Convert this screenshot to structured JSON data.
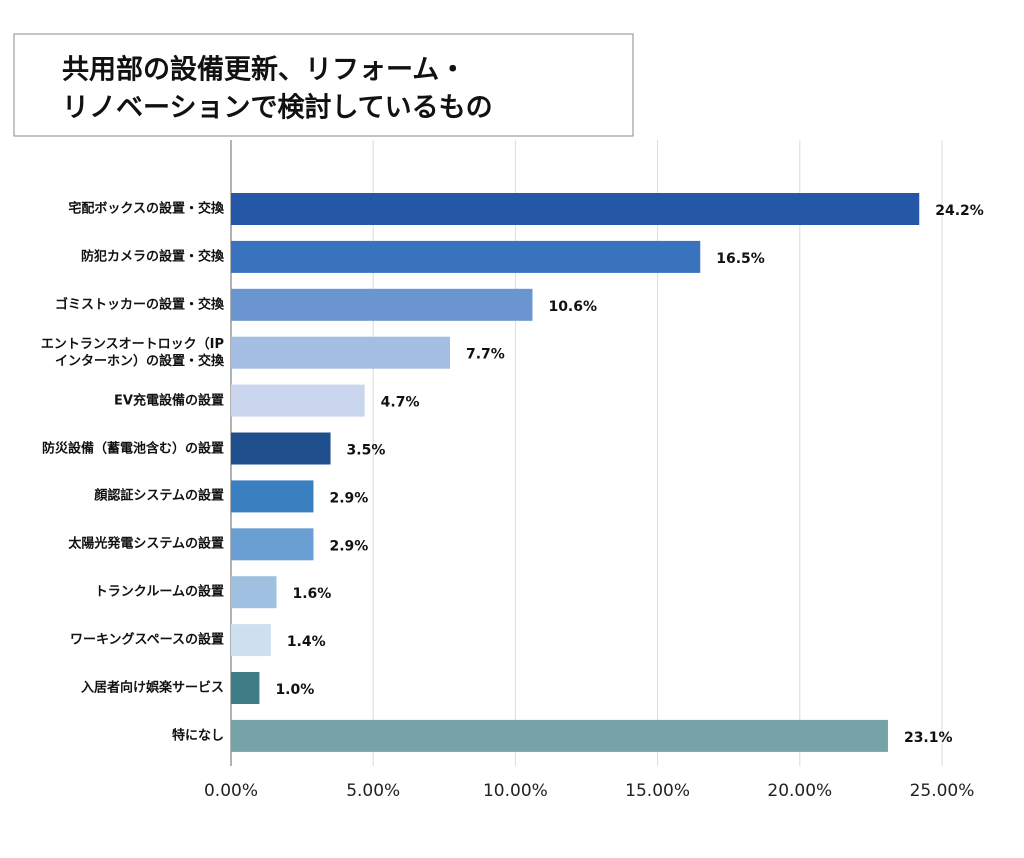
{
  "chart_data": {
    "type": "hbar",
    "title": [
      "共用部の設備更新、リフォーム・",
      "リノベーションで検討しているもの"
    ],
    "categories": [
      "宅配ボックスの設置・交換",
      "防犯カメラの設置・交換",
      "ゴミストッカーの設置・交換",
      "エントランスオートロック（IP\nインターホン）の設置・交換",
      "EV充電設備の設置",
      "防災設備（蓄電池含む）の設置",
      "顔認証システムの設置",
      "太陽光発電システムの設置",
      "トランクルームの設置",
      "ワーキングスペースの設置",
      "入居者向け娯楽サービス",
      "特になし"
    ],
    "values": [
      24.2,
      16.5,
      10.6,
      7.7,
      4.7,
      3.5,
      2.9,
      2.9,
      1.6,
      1.4,
      1.0,
      23.1
    ],
    "value_labels": [
      "24.2%",
      "16.5%",
      "10.6%",
      "7.7%",
      "4.7%",
      "3.5%",
      "2.9%",
      "2.9%",
      "1.6%",
      "1.4%",
      "1.0%",
      "23.1%"
    ],
    "colors": [
      "#2457a6",
      "#3a73bd",
      "#6b95d0",
      "#a3bde3",
      "#c9d6ee",
      "#1f4e8c",
      "#3a7fc0",
      "#6a9fd4",
      "#9fc0e0",
      "#cde0ef",
      "#3e7d86",
      "#76a3a8"
    ],
    "xlim": [
      0,
      25
    ],
    "xticks": [
      {
        "value": 0,
        "label": "0.00%"
      },
      {
        "value": 5,
        "label": "5.00%"
      },
      {
        "value": 10,
        "label": "10.00%"
      },
      {
        "value": 15,
        "label": "15.00%"
      },
      {
        "value": 20,
        "label": "20.00%"
      },
      {
        "value": 25,
        "label": "25.00%"
      }
    ],
    "grid": true
  }
}
